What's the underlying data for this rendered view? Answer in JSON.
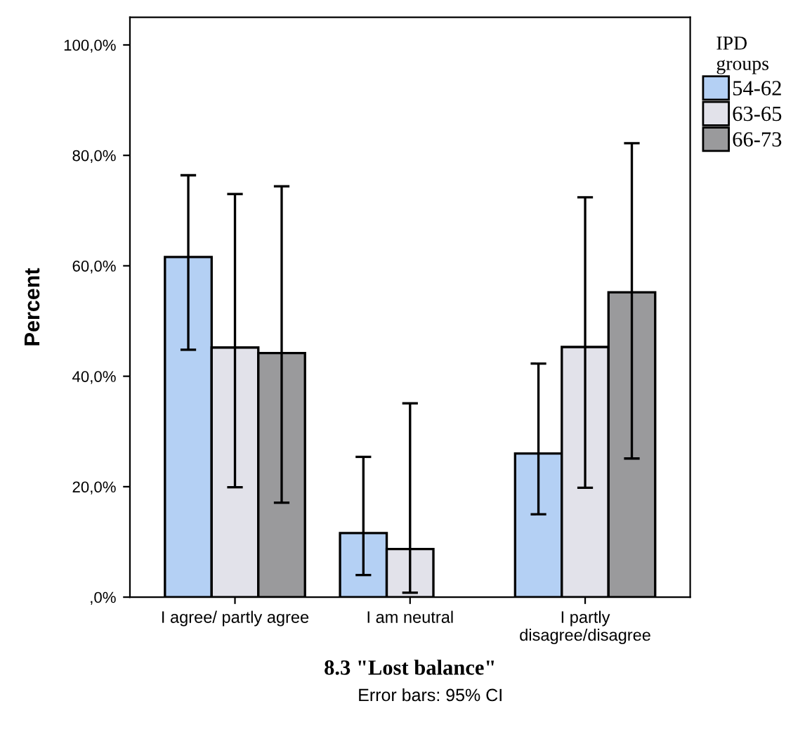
{
  "chart_data": {
    "type": "bar",
    "xlabel": "8.3 \"Lost balance\"",
    "ylabel": "Percent",
    "legend_title": "IPD\ngroups",
    "categories": [
      "I agree/ partly agree",
      "I am neutral",
      "I partly\ndisagree/disagree"
    ],
    "series": [
      {
        "name": "54-62",
        "color": "#b4d0f4",
        "values": [
          61.6,
          11.6,
          26.0
        ],
        "errors": [
          [
            44.8,
            76.4
          ],
          [
            4.0,
            25.4
          ],
          [
            15.0,
            42.3
          ]
        ]
      },
      {
        "name": "63-65",
        "color": "#e2e2ea",
        "values": [
          45.2,
          8.7,
          45.3
        ],
        "errors": [
          [
            19.9,
            73.0
          ],
          [
            0.8,
            35.1
          ],
          [
            19.8,
            72.4
          ]
        ]
      },
      {
        "name": "66-73",
        "color": "#9a9a9c",
        "values": [
          44.2,
          null,
          55.2
        ],
        "errors": [
          [
            17.1,
            74.4
          ],
          null,
          [
            25.1,
            82.2
          ]
        ]
      }
    ],
    "ylim": [
      0,
      105
    ],
    "yticks": [
      {
        "value": 0,
        "label": ",0%"
      },
      {
        "value": 20,
        "label": "20,0%"
      },
      {
        "value": 40,
        "label": "40,0%"
      },
      {
        "value": 60,
        "label": "60,0%"
      },
      {
        "value": 80,
        "label": "80,0%"
      },
      {
        "value": 100,
        "label": "100,0%"
      }
    ],
    "grid": false,
    "legend": "right",
    "annotations": [
      "Error bars: 95% CI"
    ]
  }
}
